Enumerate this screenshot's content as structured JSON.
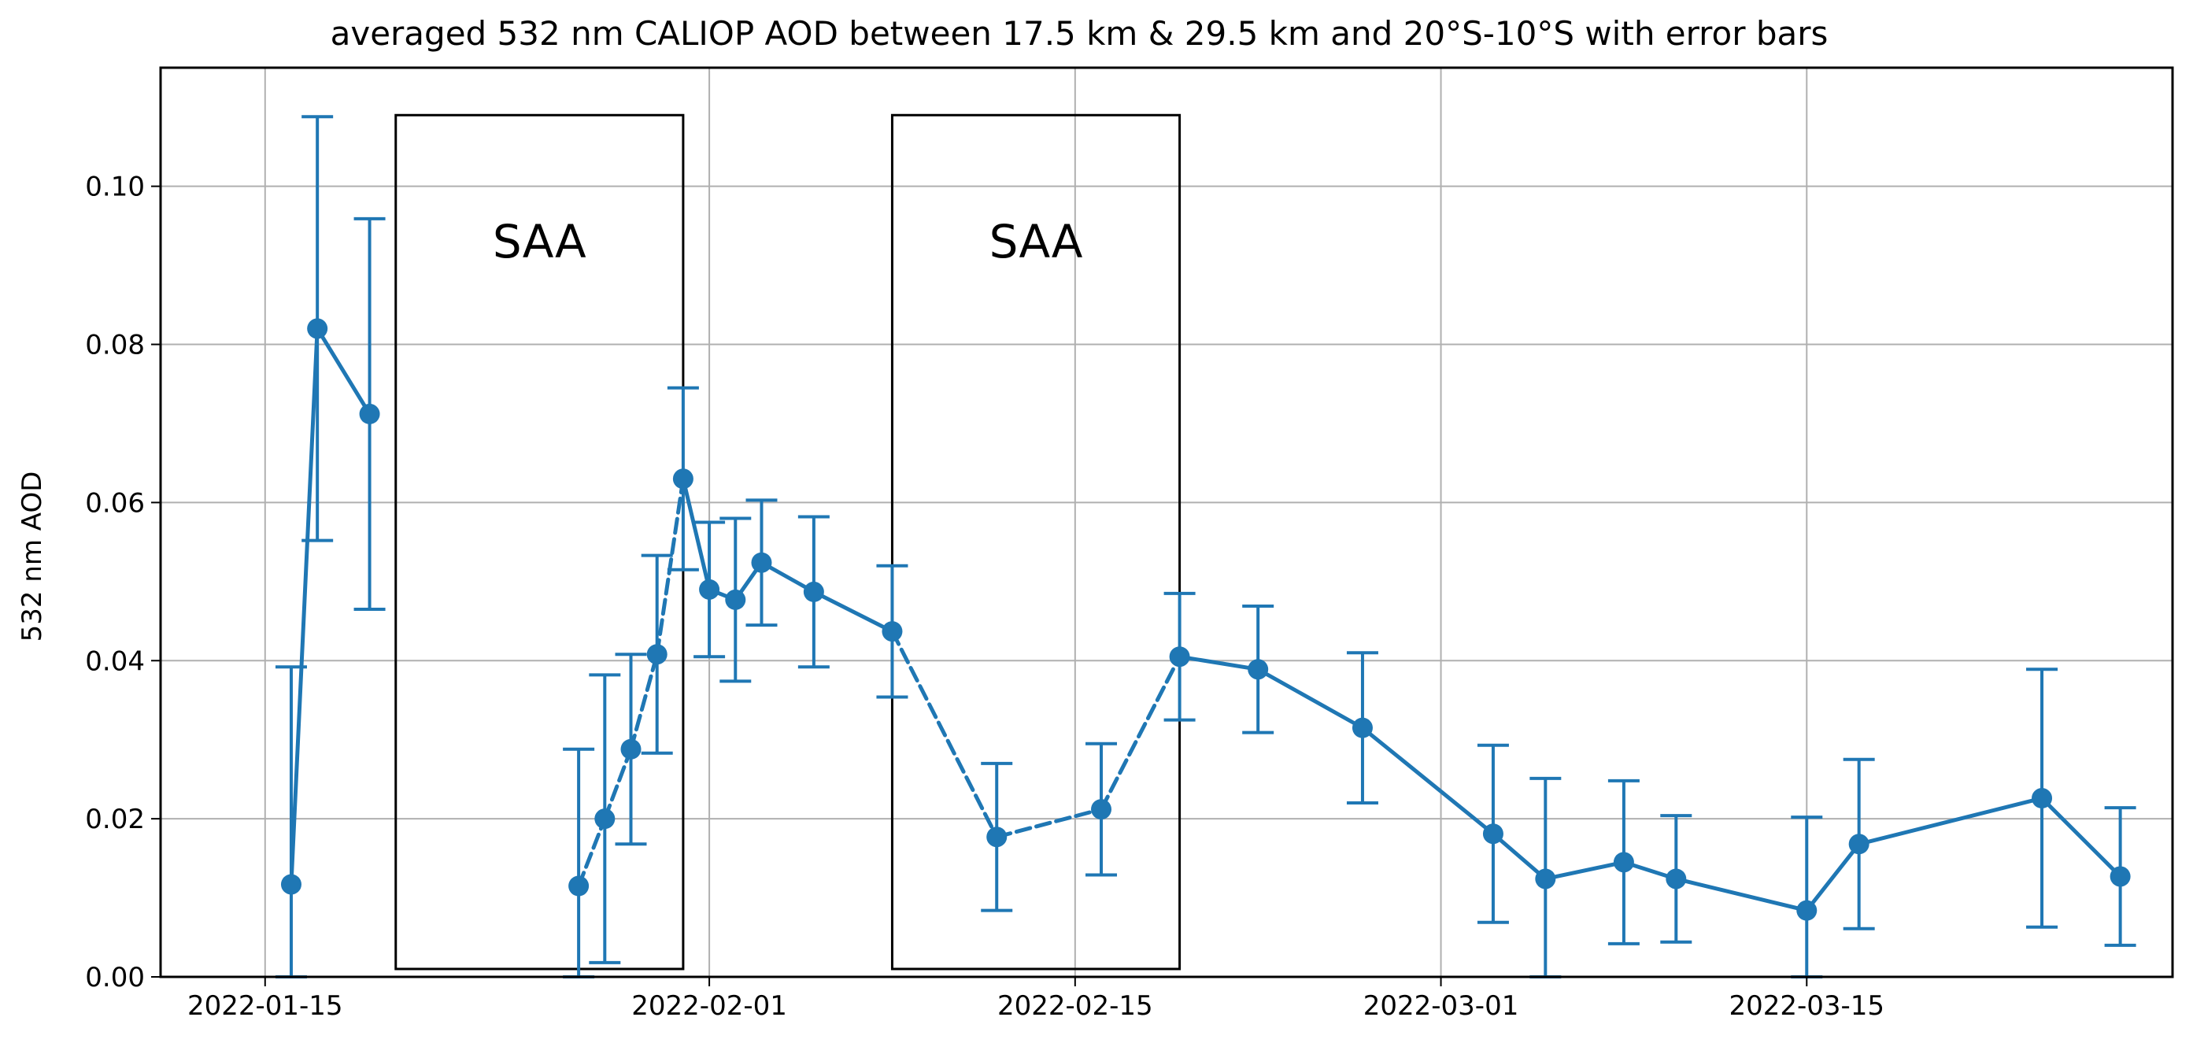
{
  "chart_data": {
    "type": "line",
    "title": "averaged 532 nm CALIOP AOD between 17.5 km & 29.5 km and 20°S-10°S with error bars",
    "xlabel": "",
    "ylabel": "532 nm AOD",
    "x_type": "date",
    "xlim": [
      "2022-01-11",
      "2022-03-29"
    ],
    "ylim": [
      0,
      0.115
    ],
    "x_ticks": [
      "2022-01-15",
      "2022-02-01",
      "2022-02-15",
      "2022-03-01",
      "2022-03-15"
    ],
    "y_ticks": [
      "0.00",
      "0.02",
      "0.04",
      "0.06",
      "0.08",
      "0.10"
    ],
    "grid": true,
    "legend": "none",
    "color": "#1f77b4",
    "points": [
      {
        "x": "2022-01-16",
        "y": 0.0117,
        "err": 0.0275
      },
      {
        "x": "2022-01-17",
        "y": 0.082,
        "err": 0.0268
      },
      {
        "x": "2022-01-19",
        "y": 0.0712,
        "err": 0.0247
      },
      {
        "x": "2022-01-27",
        "y": 0.0115,
        "err": 0.0173
      },
      {
        "x": "2022-01-28",
        "y": 0.02,
        "err": 0.0182
      },
      {
        "x": "2022-01-29",
        "y": 0.0288,
        "err": 0.012
      },
      {
        "x": "2022-01-30",
        "y": 0.0408,
        "err": 0.0125
      },
      {
        "x": "2022-01-31",
        "y": 0.063,
        "err": 0.0115
      },
      {
        "x": "2022-02-01",
        "y": 0.049,
        "err": 0.0085
      },
      {
        "x": "2022-02-02",
        "y": 0.0477,
        "err": 0.0103
      },
      {
        "x": "2022-02-03",
        "y": 0.0524,
        "err": 0.0079
      },
      {
        "x": "2022-02-05",
        "y": 0.0487,
        "err": 0.0095
      },
      {
        "x": "2022-02-08",
        "y": 0.0437,
        "err": 0.0083
      },
      {
        "x": "2022-02-12",
        "y": 0.0177,
        "err": 0.0093
      },
      {
        "x": "2022-02-16",
        "y": 0.0212,
        "err": 0.0083
      },
      {
        "x": "2022-02-19",
        "y": 0.0405,
        "err": 0.008
      },
      {
        "x": "2022-02-22",
        "y": 0.0389,
        "err": 0.008
      },
      {
        "x": "2022-02-26",
        "y": 0.0315,
        "err": 0.0095
      },
      {
        "x": "2022-03-03",
        "y": 0.0181,
        "err": 0.0112
      },
      {
        "x": "2022-03-05",
        "y": 0.0124,
        "err": 0.0127
      },
      {
        "x": "2022-03-08",
        "y": 0.0145,
        "err": 0.0103
      },
      {
        "x": "2022-03-10",
        "y": 0.0124,
        "err": 0.008
      },
      {
        "x": "2022-03-15",
        "y": 0.0084,
        "err": 0.0118
      },
      {
        "x": "2022-03-17",
        "y": 0.0168,
        "err": 0.0107
      },
      {
        "x": "2022-03-24",
        "y": 0.0226,
        "err": 0.0163
      },
      {
        "x": "2022-03-27",
        "y": 0.0127,
        "err": 0.0087
      }
    ],
    "segments": [
      {
        "from": 0,
        "to": 1,
        "style": "solid"
      },
      {
        "from": 1,
        "to": 2,
        "style": "solid"
      },
      {
        "from": 3,
        "to": 4,
        "style": "dashed"
      },
      {
        "from": 4,
        "to": 5,
        "style": "dashed"
      },
      {
        "from": 5,
        "to": 6,
        "style": "dashed"
      },
      {
        "from": 6,
        "to": 7,
        "style": "dashed"
      },
      {
        "from": 7,
        "to": 8,
        "style": "solid"
      },
      {
        "from": 8,
        "to": 9,
        "style": "solid"
      },
      {
        "from": 9,
        "to": 10,
        "style": "solid"
      },
      {
        "from": 10,
        "to": 11,
        "style": "solid"
      },
      {
        "from": 11,
        "to": 12,
        "style": "solid"
      },
      {
        "from": 12,
        "to": 13,
        "style": "dashed"
      },
      {
        "from": 13,
        "to": 14,
        "style": "dashed"
      },
      {
        "from": 14,
        "to": 15,
        "style": "dashed"
      },
      {
        "from": 15,
        "to": 16,
        "style": "solid"
      },
      {
        "from": 16,
        "to": 17,
        "style": "solid"
      },
      {
        "from": 17,
        "to": 18,
        "style": "solid"
      },
      {
        "from": 18,
        "to": 19,
        "style": "solid"
      },
      {
        "from": 19,
        "to": 20,
        "style": "solid"
      },
      {
        "from": 20,
        "to": 21,
        "style": "solid"
      },
      {
        "from": 21,
        "to": 22,
        "style": "solid"
      },
      {
        "from": 22,
        "to": 23,
        "style": "solid"
      },
      {
        "from": 23,
        "to": 24,
        "style": "solid"
      },
      {
        "from": 24,
        "to": 25,
        "style": "solid"
      }
    ],
    "annotations": [
      {
        "label": "SAA",
        "x_start": "2022-01-20",
        "x_end": "2022-01-31",
        "y_start": 0.001,
        "y_end": 0.109,
        "label_y": 0.093
      },
      {
        "label": "SAA",
        "x_start": "2022-02-08",
        "x_end": "2022-02-19",
        "y_start": 0.001,
        "y_end": 0.109,
        "label_y": 0.093
      }
    ]
  }
}
